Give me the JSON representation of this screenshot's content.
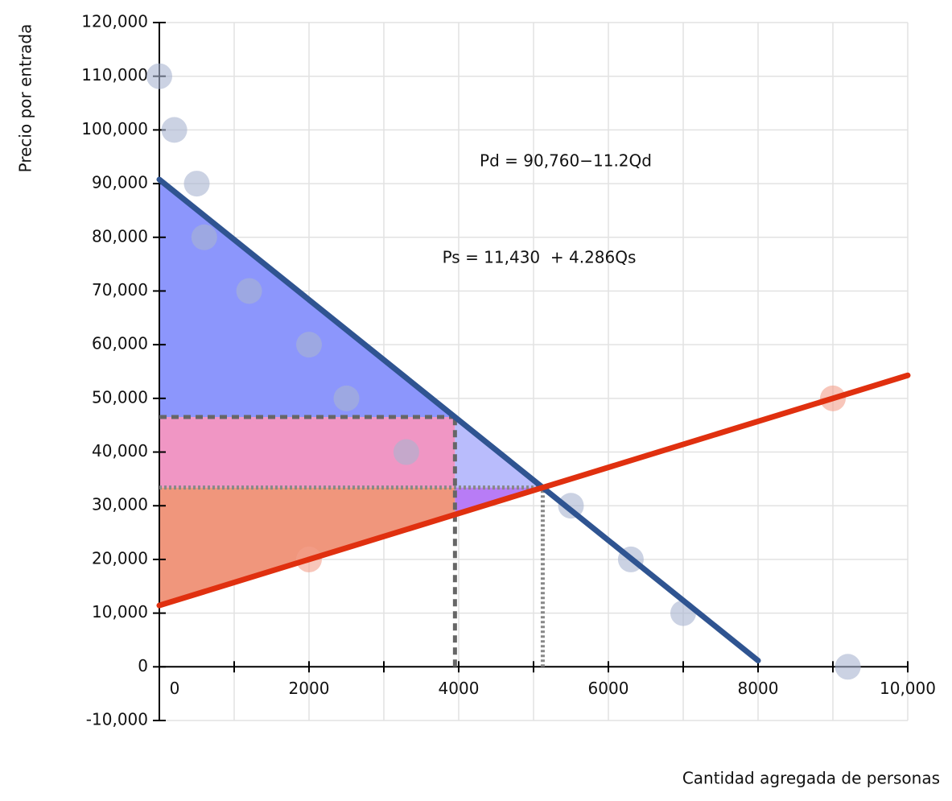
{
  "chart_data": {
    "type": "scatter",
    "xlabel": "Cantidad agregada de personas",
    "ylabel": "Precio por entrada",
    "xlim": [
      0,
      10000
    ],
    "ylim": [
      -10000,
      120000
    ],
    "xticks": [
      0,
      2000,
      4000,
      6000,
      8000,
      {
        "value": 10000,
        "label": "10,000"
      }
    ],
    "xminor_ticks": [
      1000,
      3000,
      5000,
      7000,
      9000
    ],
    "yticks": [
      {
        "value": -10000,
        "label": "-10,000"
      },
      0,
      {
        "value": 10000,
        "label": "10,000"
      },
      {
        "value": 20000,
        "label": "20,000"
      },
      {
        "value": 30000,
        "label": "30,000"
      },
      {
        "value": 40000,
        "label": "40,000"
      },
      {
        "value": 50000,
        "label": "50,000"
      },
      {
        "value": 60000,
        "label": "60,000"
      },
      {
        "value": 70000,
        "label": "70,000"
      },
      {
        "value": 80000,
        "label": "80,000"
      },
      {
        "value": 90000,
        "label": "90,000"
      },
      {
        "value": 100000,
        "label": "100,000"
      },
      {
        "value": 110000,
        "label": "110,000"
      },
      {
        "value": 120000,
        "label": "120,000"
      }
    ],
    "grid": true,
    "lines": [
      {
        "color": "#2f5491",
        "x": [
          0,
          8000
        ],
        "y": [
          90760,
          1160
        ]
      },
      {
        "color": "#e0300f",
        "x": [
          0,
          10000
        ],
        "y": [
          11430,
          54290
        ]
      }
    ],
    "points": [
      {
        "color": "#a8b4d0",
        "x": [
          0,
          200,
          500,
          600,
          1200,
          2000,
          2500,
          3300,
          5500,
          6300,
          7000,
          9200
        ],
        "y": [
          110000,
          100000,
          90000,
          80000,
          70000,
          60000,
          50000,
          40000,
          30000,
          20000,
          10000,
          0
        ]
      },
      {
        "color": "#f4a08c",
        "x": [
          2000,
          9000
        ],
        "y": [
          20000,
          50000
        ]
      }
    ],
    "reference_lines": {
      "x": [
        3950,
        5123
      ],
      "y": [
        46520,
        33386
      ]
    },
    "annotations": [
      {
        "text": "Pd = 90,760−11.2Qd",
        "color": "#2f5491"
      },
      {
        "text": "Ps = 11,430  + 4.286Qs",
        "color": "#e0300f"
      }
    ]
  }
}
